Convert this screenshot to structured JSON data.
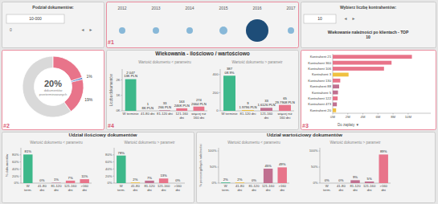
{
  "chart_data": [
    {
      "type": "timeline",
      "categories": [
        "2012",
        "2013",
        "2014",
        "2015",
        "2016",
        "2017"
      ],
      "annotations": [
        "#1"
      ]
    },
    {
      "type": "donut",
      "values": [
        60,
        19,
        1,
        20
      ],
      "colors": [
        "#d9d9d9",
        "#e8748a",
        "#4472c4",
        "#e8748a"
      ],
      "value_labels": [
        null,
        "19%",
        "1%",
        null
      ],
      "annotations": [
        "20%",
        "dokumentów\nprzeterminowanych",
        "#2"
      ]
    },
    {
      "type": "bar",
      "title": "Wiekowania - ilościowo / wartościowo",
      "subtitle": "Wartość dokumentu < parametru",
      "categories": [
        "W terminie",
        "41-80 dni",
        "81-120 dni",
        "121-160\ndni",
        "więcej niż\n160 dni"
      ],
      "values": [
        2047,
        1,
        33,
        163,
        274
      ],
      "colors": [
        "#3db88a",
        "#f0c040",
        "#c07090",
        "#e8748a",
        "#e8748a"
      ],
      "ylim": [
        0,
        2700
      ],
      "yticks": [
        {
          "value": 0,
          "label": "0K"
        },
        {
          "value": 1000,
          "label": "1K"
        },
        {
          "value": 2000,
          "label": "2K"
        }
      ],
      "ylabel": "Liczba dokumentów",
      "data_labels": true,
      "value_labels": [
        "2 047\n13K PLN",
        "1\n8K PLN",
        "33\n266 PLN",
        "163\n246K PLN",
        "274\n2664 PLN"
      ],
      "annotations": [
        "#4"
      ]
    },
    {
      "type": "bar",
      "subtitle": "Wartość dokumentu > parametr",
      "categories": [
        "W terminie",
        "81-120 dni",
        "121-160\ndni",
        "więcej niż\n160 dni"
      ],
      "values": [
        387,
        9,
        33,
        65
      ],
      "colors": [
        "#3db88a",
        "#f0c040",
        "#c07090",
        "#e8748a"
      ],
      "ylim": [
        0,
        460
      ],
      "yticks": [
        0,
        200,
        400
      ],
      "data_labels": true,
      "value_labels": [
        "387\n08.9%",
        "9\n1.9796 PLN",
        "33\n1.6126 PLN",
        "65\n29.7908 PLN"
      ]
    },
    {
      "type": "bar",
      "orientation": "horizontal",
      "title": "Wiekowanie należności po klientach - TOP\n10",
      "categories": [
        "Kontrahent 21",
        "Kontrahent 360",
        "Kontrahent 106",
        "Kontrahent 3",
        "Kontrahent 130",
        "Kontrahent 88",
        "Kontrahent 5",
        "Kontrahent 122",
        "Kontrahent 473",
        "Kontrahent 20"
      ],
      "values": [
        10.5,
        7.8,
        6.8,
        2.1,
        1.0,
        0.85,
        0.7,
        0.65,
        0.55,
        0.45
      ],
      "colors": [
        "#e8748a",
        "#e8748a",
        "#e8748a",
        "#f0c040",
        "#e8748a",
        "#c07090",
        "#c07090",
        "#e8748a",
        "#c07090",
        "#f0c040"
      ],
      "xlim": [
        0,
        13
      ],
      "xticks": [
        {
          "value": 0,
          "label": "0M"
        },
        {
          "value": 2,
          "label": "2M"
        },
        {
          "value": 4,
          "label": "4M"
        },
        {
          "value": 6,
          "label": "6M"
        },
        {
          "value": 8,
          "label": "8M"
        },
        {
          "value": 10,
          "label": "10M"
        }
      ],
      "annotations": [
        "Do zapłaty  ▼",
        "#3"
      ]
    },
    {
      "type": "bar",
      "title": "Udział ilościowy dokumentów",
      "subtitle": "Wartość dokumentu < parametru",
      "categories": [
        "W\nterm.",
        "41-80\ndni",
        "81-120\ndni",
        "121-160\ndni",
        ">160\ndni"
      ],
      "values": [
        81,
        0,
        1,
        7,
        11
      ],
      "colors": [
        "#3db88a",
        "#f0c040",
        "#c07090",
        "#e8748a",
        "#e8748a"
      ],
      "ylim": [
        0,
        100
      ],
      "yticks": [
        {
          "value": 0,
          "label": "0%"
        },
        {
          "value": 20,
          "label": "20%"
        },
        {
          "value": 40,
          "label": "40%"
        },
        {
          "value": 60,
          "label": "60%"
        },
        {
          "value": 80,
          "label": "80%"
        }
      ],
      "ylabel": "% dokumentów",
      "data_labels": true,
      "value_labels": [
        "81%",
        "0%",
        "1%",
        "7%",
        "11%"
      ]
    },
    {
      "type": "bar",
      "subtitle": "Wartość dokumentu > parametr",
      "categories": [
        "W\nterm.",
        "41-80\ndni",
        "81-120\ndni",
        "121-160\ndni",
        ">160\ndni"
      ],
      "values": [
        78,
        2,
        7,
        13,
        0
      ],
      "colors": [
        "#3db88a",
        "#f0c040",
        "#c07090",
        "#e8748a",
        "#e8748a"
      ],
      "ylim": [
        0,
        100
      ],
      "yticks": [
        {
          "value": 0,
          "label": "0%"
        },
        {
          "value": 20,
          "label": "20%"
        },
        {
          "value": 40,
          "label": "40%"
        },
        {
          "value": 60,
          "label": "60%"
        },
        {
          "value": 80,
          "label": "80%"
        }
      ],
      "data_labels": true,
      "value_labels": [
        "78%",
        "2%",
        "7%",
        "13%",
        "0%"
      ]
    },
    {
      "type": "bar",
      "title": "Udział wartościowy dokumentów",
      "subtitle": "Wartość dokumentu < parametru",
      "categories": [
        "W\nterm.",
        "41-80\ndni",
        "81-120\ndni",
        "121-160\ndni",
        ">160\ndni"
      ],
      "values": [
        2,
        2,
        0,
        45,
        49
      ],
      "colors": [
        "#3db88a",
        "#f0c040",
        "#c07090",
        "#c07090",
        "#e8748a"
      ],
      "ylim": [
        0,
        110
      ],
      "yticks": [
        {
          "value": 0,
          "label": "0%"
        },
        {
          "value": 50,
          "label": "50%"
        },
        {
          "value": 100,
          "label": "100%"
        }
      ],
      "ylabel": "% poszczególnych należności",
      "data_labels": true,
      "value_labels": [
        "2%",
        "2%",
        "0%",
        "45%",
        "49%"
      ]
    },
    {
      "type": "bar",
      "subtitle": "Wartość dokumentu > parametr",
      "categories": [
        "W\nterm.",
        "41-80\ndni",
        "81-120\ndni",
        "121-160\ndni",
        ">160\ndni"
      ],
      "values": [
        0,
        0,
        9,
        5,
        89
      ],
      "colors": [
        "#3db88a",
        "#f0c040",
        "#c07090",
        "#c07090",
        "#e8748a"
      ],
      "ylim": [
        0,
        110
      ],
      "yticks": [
        {
          "value": 0,
          "label": "0%"
        },
        {
          "value": 50,
          "label": "50%"
        },
        {
          "value": 100,
          "label": "100%"
        }
      ],
      "data_labels": true,
      "value_labels": [
        "0%",
        "0%",
        "9%",
        "5%",
        "89%"
      ]
    }
  ],
  "annotations": [
    "Podział dokumentów:",
    "10-000",
    "0",
    "◄",
    "►",
    "Wybierz liczbę kontrahentów:",
    "10",
    "◄",
    "►"
  ]
}
